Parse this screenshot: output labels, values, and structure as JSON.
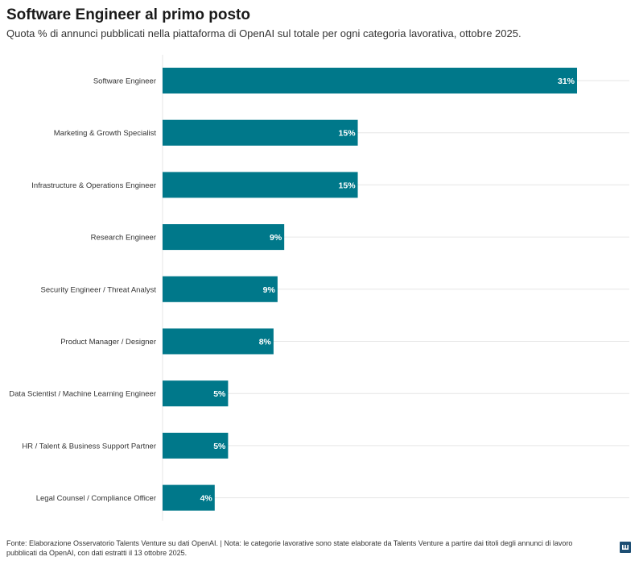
{
  "header": {
    "title": "Software Engineer al primo posto",
    "subtitle": "Quota % di annunci pubblicati nella piattaforma di OpenAI sul totale per ogni categoria lavorativa, ottobre 2025."
  },
  "footer": {
    "text": "Fonte: Elaborazione Osservatorio Talents Venture su dati OpenAI. | Nota: le categorie lavorative sono state elaborate da Talents Venture a partire dai titoli degli annunci di lavoro pubblicati da OpenAI, con dati estratti il 13 ottobre 2025."
  },
  "logo": {
    "icon": "datawrapper-logo-icon"
  },
  "colors": {
    "bar": "#00788a",
    "grid": "#e6e6e6",
    "label": "#ffffff"
  },
  "chart_data": {
    "type": "bar",
    "orientation": "horizontal",
    "categories": [
      "Software Engineer",
      "Marketing & Growth Specialist",
      "Infrastructure & Operations Engineer",
      "Research Engineer",
      "Security Engineer / Threat Analyst",
      "Product Manager / Designer",
      "Data Scientist / Machine Learning Engineer",
      "HR / Talent & Business Support Partner",
      "Legal Counsel / Compliance Officer"
    ],
    "values": [
      31,
      14.6,
      14.6,
      9.1,
      8.6,
      8.3,
      4.9,
      4.9,
      3.9
    ],
    "data_labels": [
      "31%",
      "15%",
      "15%",
      "9%",
      "9%",
      "8%",
      "5%",
      "5%",
      "4%"
    ],
    "title": "Software Engineer al primo posto",
    "xlabel": "",
    "ylabel": "",
    "xlim": [
      0,
      35
    ],
    "grid": true,
    "legend": "none"
  }
}
